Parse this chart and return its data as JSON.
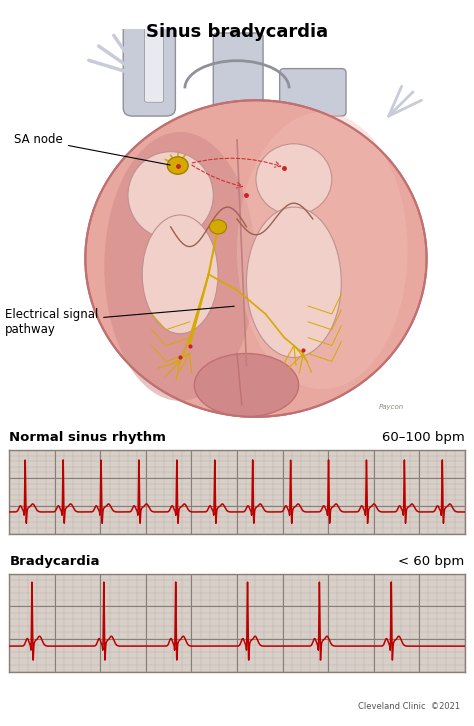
{
  "title": "Sinus bradycardia",
  "title_fontsize": 13,
  "title_fontweight": "bold",
  "bg_color": "#ffffff",
  "ecg_bg": "#d8d0c8",
  "ecg_grid_major_color": "#888078",
  "ecg_grid_minor_color": "#b8b0a8",
  "ecg_line_color": "#bb0000",
  "normal_label": "Normal sinus rhythm",
  "normal_bpm": "60–100 bpm",
  "brady_label": "Bradycardia",
  "brady_bpm": "< 60 bpm",
  "label_fontsize": 9.5,
  "bpm_fontsize": 9.5,
  "clinic_text": "Cleveland Clinic  ©2021",
  "sa_node_label": "SA node",
  "electrical_label": "Electrical signal\npathway",
  "heart_pink_main": "#e8a8a0",
  "heart_pink_light": "#f0c0b8",
  "heart_pink_dark": "#d08888",
  "heart_outline": "#c07070",
  "vessel_color": "#c8ccd8",
  "vessel_edge": "#909098",
  "nerve_color": "#d4aa00",
  "nerve_edge": "#a08000",
  "inner_color": "#f0d0c8"
}
